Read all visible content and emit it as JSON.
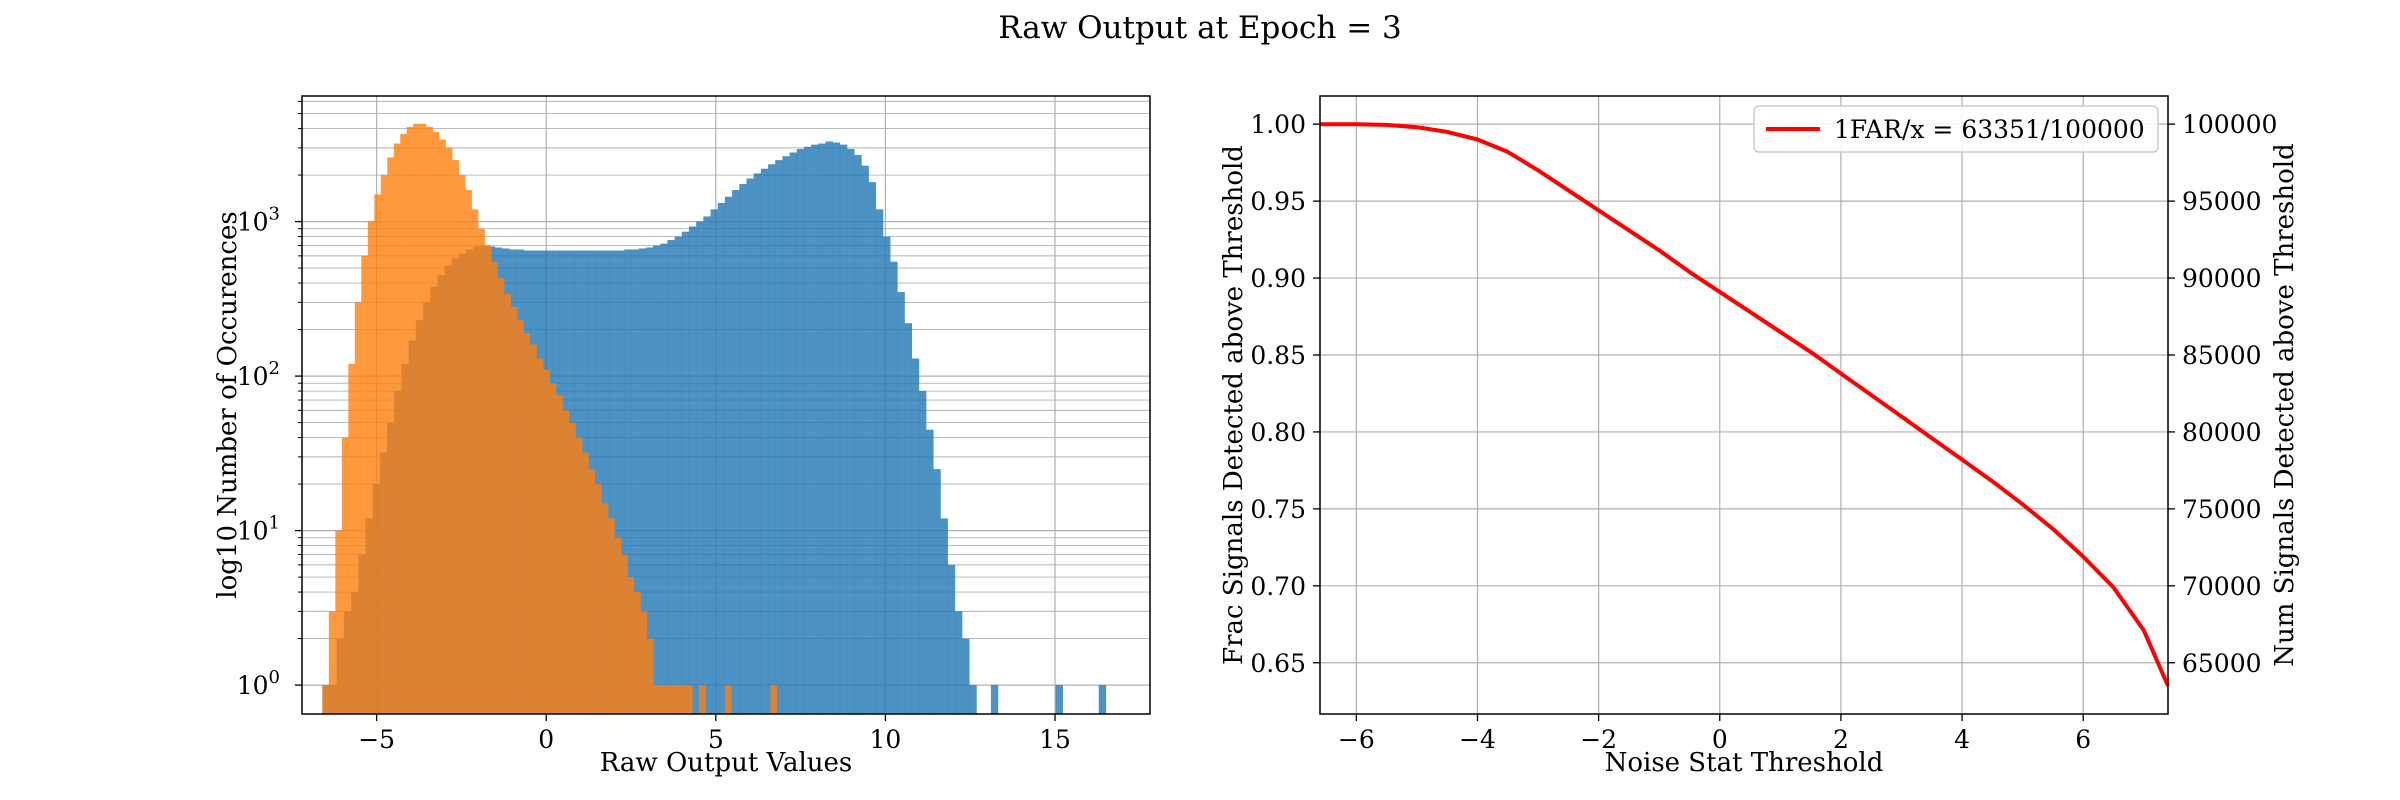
{
  "title": "Raw Output at Epoch = 3",
  "colors": {
    "signal": "#1f77b4",
    "noise": "#ff7f0e",
    "curve": "#ff0000",
    "grid": "#b0b0b0"
  },
  "chart_data": [
    {
      "type": "bar",
      "subtype": "histogram",
      "xlabel": "Raw Output Values",
      "ylabel": "log10 Number of Occurences",
      "xlim": [
        -7.2,
        17.8
      ],
      "ylim": [
        0.65,
        6500
      ],
      "yscale": "log",
      "grid": "on (major and minor)",
      "xticks": [
        -5,
        0,
        5,
        10,
        15
      ],
      "xtick_labels": [
        "−5",
        "0",
        "5",
        "10",
        "15"
      ],
      "ytick_labels": [
        {
          "value": 1,
          "base": "10",
          "exp": "0"
        },
        {
          "value": 10,
          "base": "10",
          "exp": "1"
        },
        {
          "value": 100,
          "base": "10",
          "exp": "2"
        },
        {
          "value": 1000,
          "base": "10",
          "exp": "3"
        }
      ],
      "series": [
        {
          "color": "signal",
          "range": [
            -6.6,
            16.5
          ],
          "counts": [
            1,
            1,
            2,
            3,
            4,
            7,
            12,
            20,
            32,
            50,
            80,
            120,
            170,
            230,
            300,
            380,
            450,
            520,
            580,
            620,
            660,
            690,
            700,
            690,
            680,
            670,
            660,
            660,
            650,
            650,
            650,
            650,
            650,
            650,
            650,
            650,
            650,
            650,
            650,
            650,
            650,
            650,
            660,
            660,
            670,
            680,
            700,
            720,
            760,
            800,
            860,
            930,
            1000,
            1080,
            1200,
            1320,
            1450,
            1600,
            1750,
            1900,
            2050,
            2200,
            2350,
            2500,
            2650,
            2800,
            2950,
            3050,
            3150,
            3200,
            3300,
            3250,
            3150,
            2950,
            2700,
            2300,
            1800,
            1200,
            800,
            550,
            350,
            220,
            130,
            80,
            45,
            25,
            12,
            6,
            3,
            2,
            1,
            0,
            0,
            1,
            0,
            0,
            0,
            0,
            0,
            0,
            0,
            0,
            1,
            0,
            0,
            0,
            0,
            0,
            1
          ]
        },
        {
          "color": "noise",
          "range": [
            -6.6,
            6.8
          ],
          "counts": [
            1,
            3,
            10,
            40,
            120,
            300,
            600,
            1000,
            1500,
            2000,
            2600,
            3200,
            3700,
            4100,
            4300,
            4300,
            4100,
            3800,
            3400,
            3000,
            2500,
            2000,
            1600,
            1200,
            900,
            700,
            550,
            430,
            340,
            280,
            230,
            190,
            160,
            130,
            110,
            90,
            75,
            60,
            50,
            40,
            32,
            25,
            20,
            15,
            12,
            9,
            7,
            5,
            4,
            3,
            2,
            1,
            1,
            1,
            1,
            1,
            1,
            0,
            1,
            0,
            0,
            0,
            1,
            0,
            0,
            0,
            0,
            0,
            0,
            1
          ]
        }
      ]
    },
    {
      "type": "line",
      "xlabel": "Noise Stat Threshold",
      "ylabel": "Frac Signals Detected above Threshold",
      "y2label": "Num Signals Detected above Threshold",
      "xlim": [
        -6.6,
        7.4
      ],
      "ylim": [
        0.6167,
        1.0183
      ],
      "y2lim": [
        61670,
        101830
      ],
      "grid": "on",
      "legend_position": "top-right",
      "xticks": [
        -6,
        -4,
        -2,
        0,
        2,
        4,
        6
      ],
      "xtick_labels": [
        "−6",
        "−4",
        "−2",
        "0",
        "2",
        "4",
        "6"
      ],
      "yticks": [
        0.65,
        0.7,
        0.75,
        0.8,
        0.85,
        0.9,
        0.95,
        1.0
      ],
      "ytick_labels": [
        "0.65",
        "0.70",
        "0.75",
        "0.80",
        "0.85",
        "0.90",
        "0.95",
        "1.00"
      ],
      "y2ticks": [
        65000,
        70000,
        75000,
        80000,
        85000,
        90000,
        95000,
        100000
      ],
      "y2tick_labels": [
        "65000",
        "70000",
        "75000",
        "80000",
        "85000",
        "90000",
        "95000",
        "100000"
      ],
      "series": [
        {
          "name": "1FAR/x = 63351/100000",
          "color": "curve",
          "x": [
            -6.6,
            -6.0,
            -5.5,
            -5.0,
            -4.5,
            -4.0,
            -3.5,
            -3.0,
            -2.5,
            -2.0,
            -1.5,
            -1.0,
            -0.5,
            0.0,
            0.5,
            1.0,
            1.5,
            2.0,
            2.5,
            3.0,
            3.5,
            4.0,
            4.5,
            5.0,
            5.5,
            6.0,
            6.5,
            7.0,
            7.4
          ],
          "y": [
            1.0,
            1.0,
            0.9995,
            0.998,
            0.995,
            0.99,
            0.982,
            0.97,
            0.957,
            0.944,
            0.931,
            0.918,
            0.904,
            0.891,
            0.878,
            0.865,
            0.852,
            0.838,
            0.824,
            0.81,
            0.796,
            0.782,
            0.768,
            0.753,
            0.737,
            0.719,
            0.699,
            0.671,
            0.635
          ]
        }
      ]
    }
  ]
}
